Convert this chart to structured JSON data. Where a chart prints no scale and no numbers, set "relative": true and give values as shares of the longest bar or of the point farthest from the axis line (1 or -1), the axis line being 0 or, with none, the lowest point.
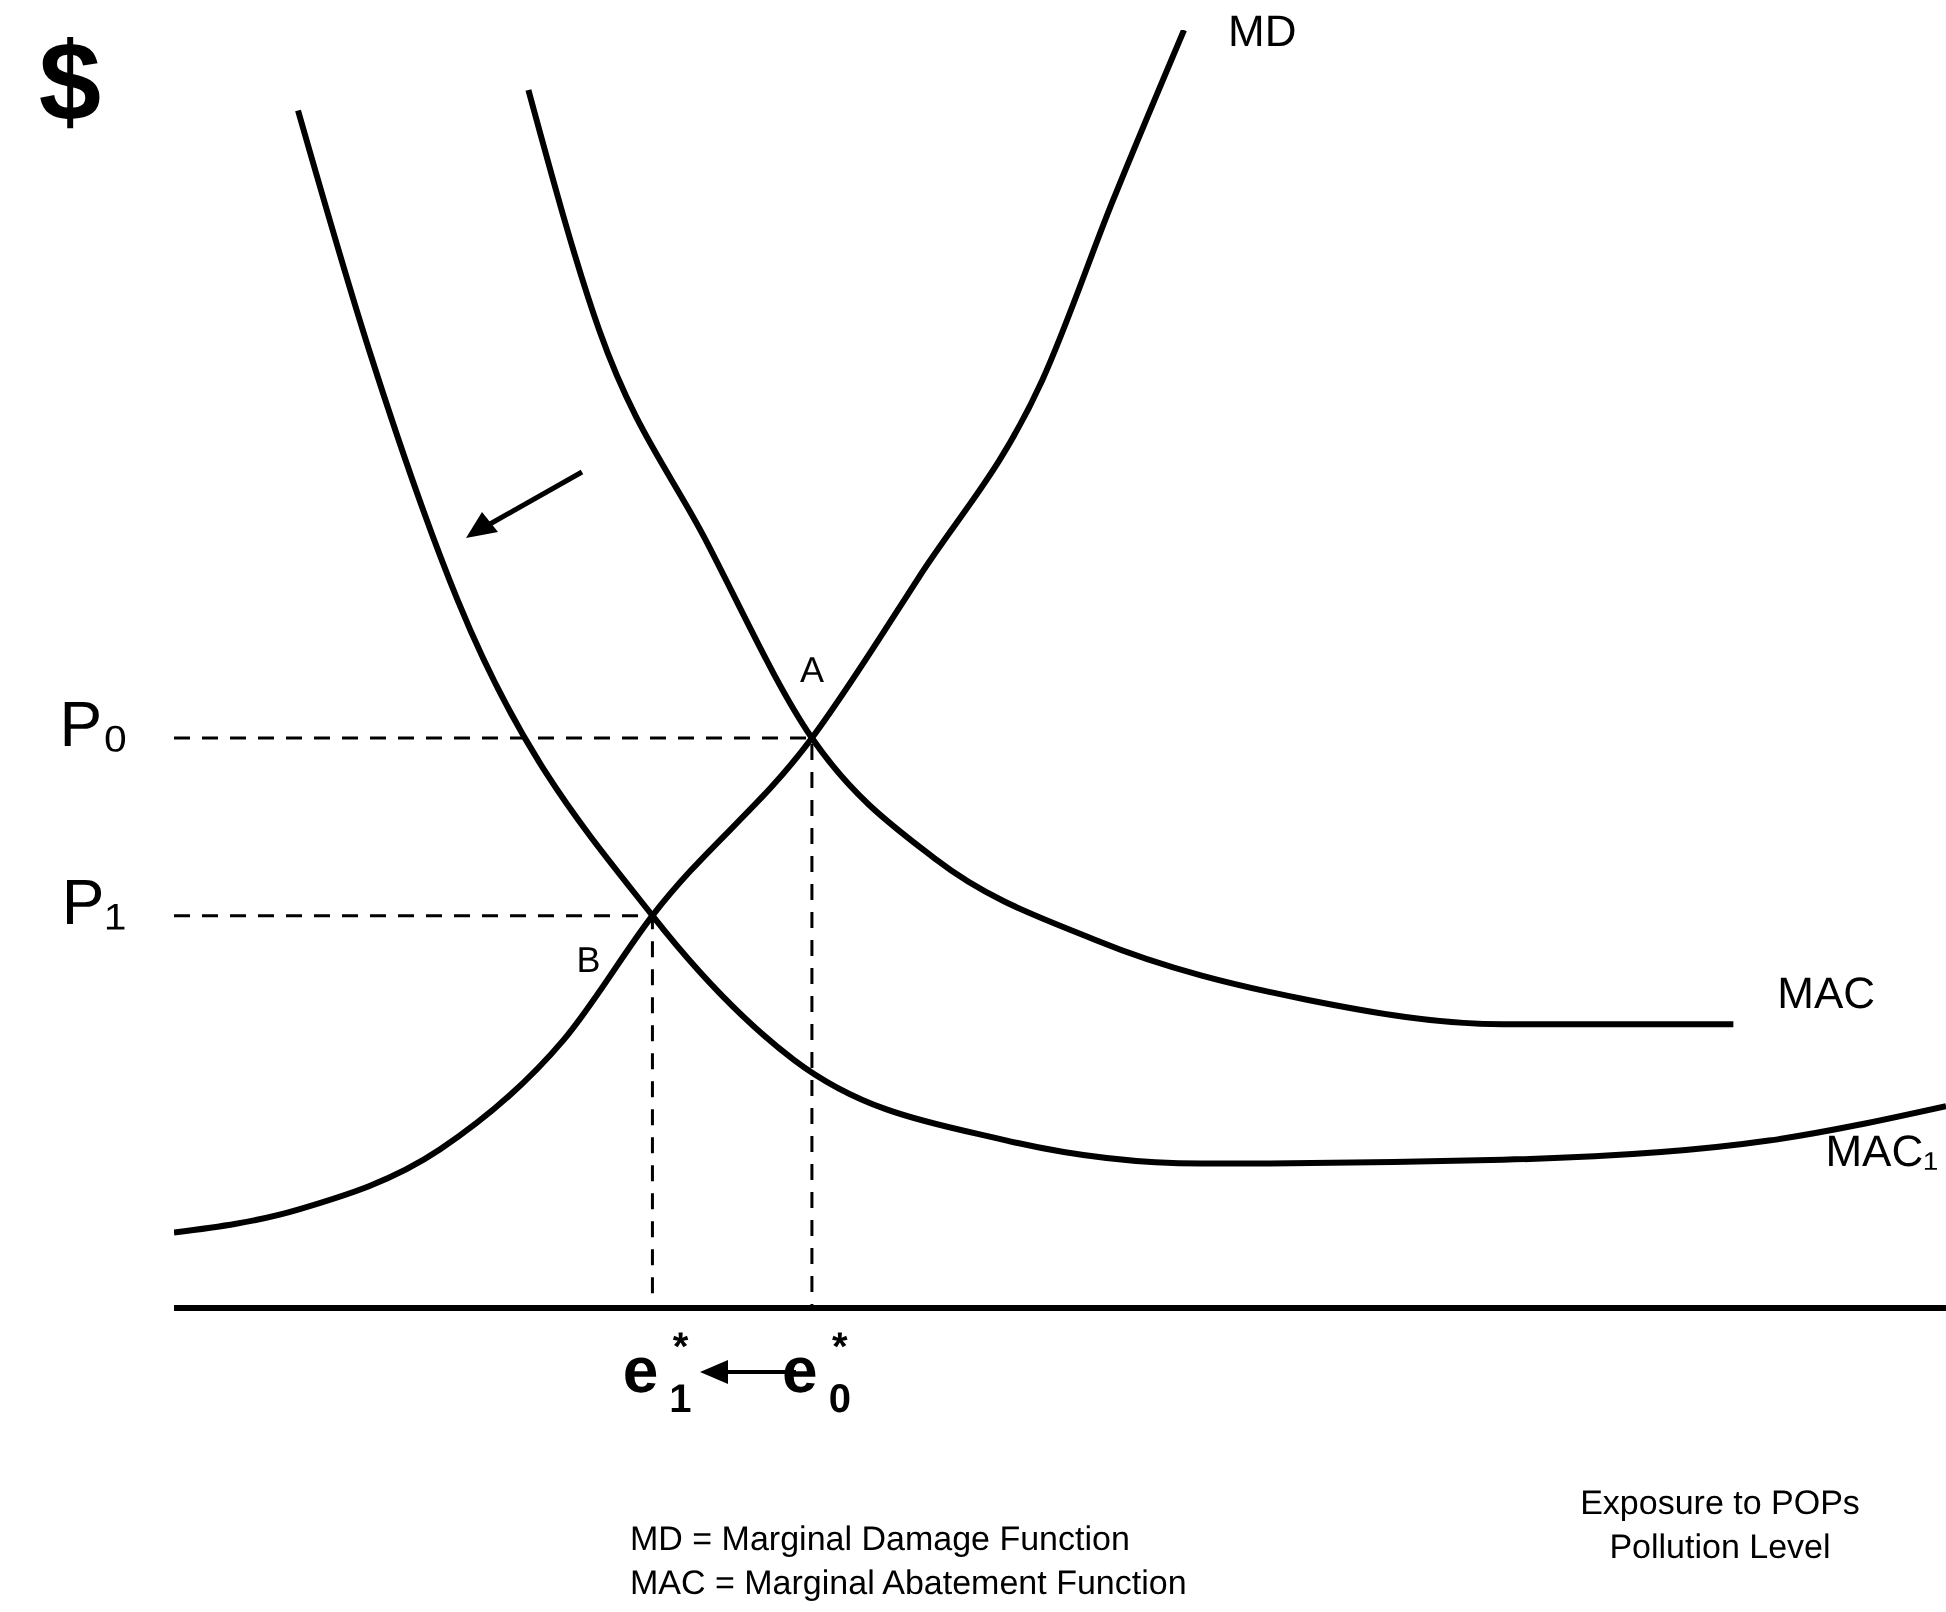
{
  "chart_data": {
    "type": "line",
    "relative": true,
    "ylabel": "$",
    "xlabel": "Exposure to POPs\nPollution Level",
    "categories": [
      null,
      null,
      null,
      null,
      null,
      null,
      null,
      null,
      null,
      null,
      null,
      null,
      null,
      null,
      null,
      null,
      null,
      null,
      null,
      null,
      null,
      null,
      null,
      null,
      null,
      null,
      null,
      "e$^{*}$$_{1}$",
      null,
      null,
      null,
      null,
      null,
      null,
      null,
      null,
      "e$^{*}$$_{0}$",
      null,
      null,
      null,
      null,
      null,
      null,
      null,
      null,
      null,
      null,
      null,
      null,
      null,
      null,
      null,
      null,
      null,
      null,
      null,
      null,
      null,
      null,
      null,
      null,
      null,
      null,
      null,
      null,
      null,
      null,
      null,
      null,
      null,
      null,
      null,
      null,
      null,
      null,
      null,
      null,
      null,
      null,
      null,
      null,
      null,
      null,
      null,
      null,
      null,
      null,
      null,
      null,
      null,
      null,
      null,
      null,
      null,
      null,
      null,
      null,
      null,
      null,
      null,
      null
    ],
    "annotations": [
      {
        "text": "A",
        "x": "e$^{*}$$_{0}$",
        "y": 0.446
      },
      {
        "text": "B",
        "x": "e$^{*}$$_{1}$",
        "y": 0.307
      },
      "P₀",
      "P₁",
      "MD = Marginal Damage Function",
      "MAC = Marginal Abatement Function"
    ],
    "series": [
      {
        "name": "MD",
        "color": "#000000",
        "values": [
          0.059,
          null,
          null,
          null,
          null,
          null,
          null,
          0.077,
          null,
          null,
          null,
          null,
          null,
          null,
          null,
          0.124,
          null,
          null,
          null,
          null,
          null,
          null,
          0.21,
          null,
          null,
          null,
          null,
          0.307,
          null,
          null,
          null,
          null,
          null,
          null,
          null,
          null,
          0.446,
          null,
          null,
          null,
          null,
          null,
          0.571,
          null,
          null,
          null,
          null,
          null,
          null,
          0.726,
          null,
          null,
          null,
          0.867,
          null,
          null,
          null,
          1,
          null,
          null,
          null,
          null,
          null,
          null,
          null,
          null,
          null,
          null,
          null,
          null,
          null,
          null,
          null,
          null,
          null,
          null,
          null,
          null,
          null,
          null,
          null,
          null,
          null,
          null,
          null,
          null,
          null,
          null,
          null,
          null,
          null,
          null,
          null,
          null,
          null,
          null,
          null,
          null,
          null,
          null,
          null
        ]
      },
      {
        "name": "MAC",
        "color": "#000000",
        "values": [
          null,
          null,
          null,
          null,
          null,
          null,
          null,
          null,
          null,
          null,
          null,
          null,
          null,
          null,
          null,
          null,
          null,
          null,
          null,
          null,
          0.953,
          null,
          null,
          null,
          0.765,
          null,
          null,
          null,
          null,
          null,
          0.601,
          null,
          null,
          null,
          null,
          null,
          0.446,
          null,
          null,
          null,
          null,
          null,
          null,
          0.351,
          null,
          null,
          null,
          null,
          null,
          null,
          null,
          null,
          0.288,
          null,
          null,
          null,
          null,
          null,
          null,
          null,
          null,
          null,
          null,
          null,
          0.241,
          null,
          null,
          null,
          null,
          null,
          null,
          null,
          null,
          null,
          null,
          0.222,
          null,
          null,
          null,
          null,
          null,
          null,
          null,
          null,
          null,
          null,
          null,
          null,
          0.222,
          null,
          null,
          null,
          null,
          null,
          null,
          null,
          null,
          null,
          null,
          null,
          null
        ]
      },
      {
        "name": "MAC₁",
        "color": "#000000",
        "values": [
          null,
          null,
          null,
          null,
          null,
          null,
          null,
          0.937,
          null,
          null,
          null,
          0.75,
          null,
          null,
          null,
          null,
          0.554,
          null,
          null,
          null,
          null,
          null,
          null,
          null,
          null,
          null,
          null,
          0.307,
          null,
          null,
          null,
          null,
          null,
          null,
          null,
          0.194,
          null,
          null,
          null,
          null,
          null,
          null,
          null,
          null,
          null,
          null,
          null,
          0.131,
          null,
          null,
          null,
          null,
          null,
          null,
          null,
          null,
          null,
          null,
          0.113,
          null,
          null,
          null,
          null,
          null,
          null,
          null,
          null,
          null,
          null,
          null,
          null,
          null,
          null,
          null,
          null,
          0.116,
          null,
          null,
          null,
          null,
          null,
          null,
          null,
          null,
          null,
          null,
          null,
          null,
          null,
          null,
          0.131,
          null,
          null,
          null,
          null,
          null,
          null,
          null,
          null,
          null,
          0.158
        ]
      }
    ]
  }
}
